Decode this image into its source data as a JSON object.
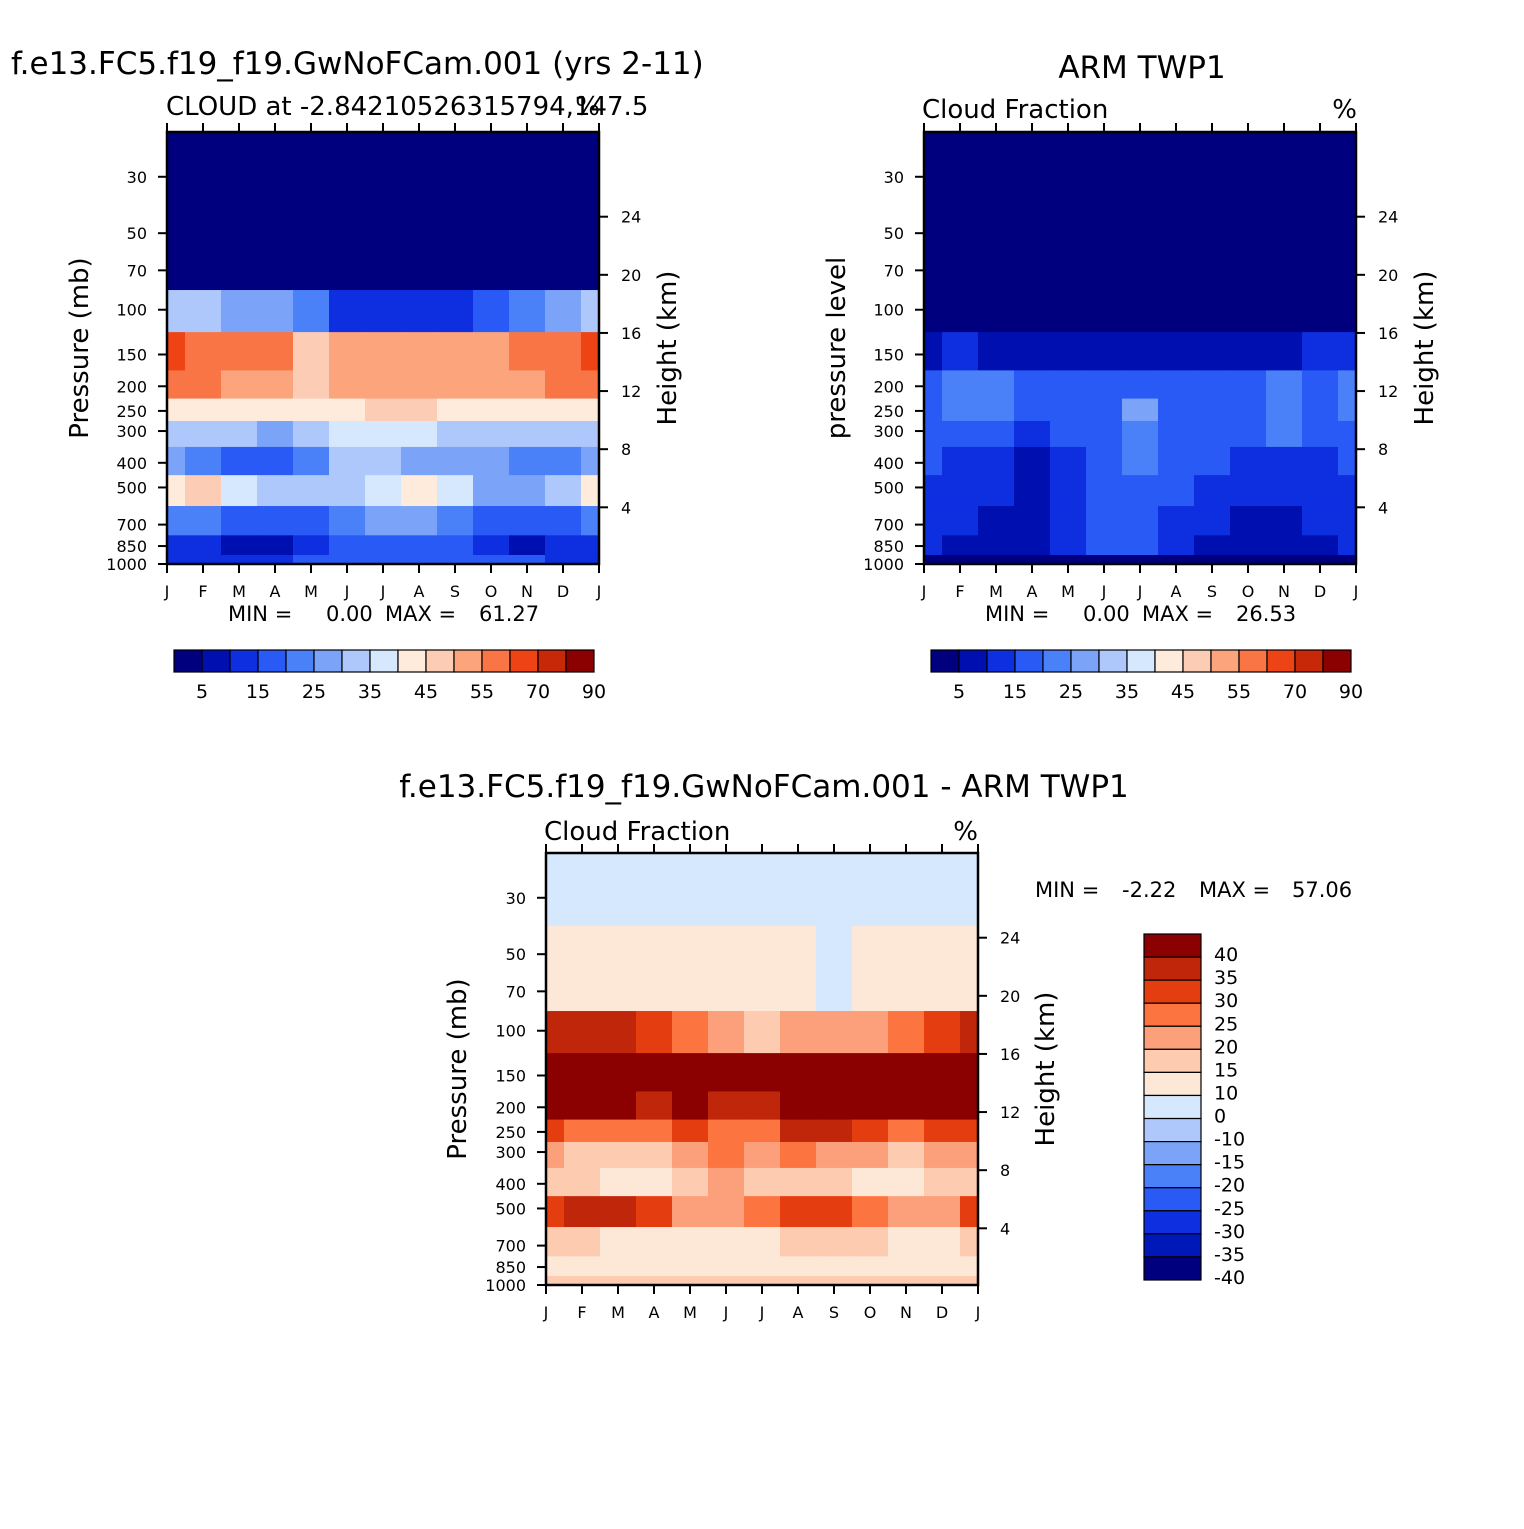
{
  "months": [
    "J",
    "F",
    "M",
    "A",
    "M",
    "J",
    "J",
    "A",
    "S",
    "O",
    "N",
    "D",
    "J"
  ],
  "pressure_ticks": [
    30,
    50,
    70,
    100,
    150,
    200,
    250,
    300,
    400,
    500,
    700,
    850,
    1000
  ],
  "height_ticks": [
    4,
    8,
    12,
    16,
    20,
    24
  ],
  "colors": {
    "abs_scale": [
      "#00007f",
      "#0010b0",
      "#0d2fe0",
      "#2a5af5",
      "#4a80f8",
      "#7ba3f8",
      "#aec8fb",
      "#d6e8fd",
      "#feebdc",
      "#fdccb5",
      "#fca47c",
      "#f97546",
      "#ee4315",
      "#c62808",
      "#8b0000"
    ],
    "diff_scale": [
      "#8b0000",
      "#c0260a",
      "#e43d10",
      "#fc7440",
      "#fba07a",
      "#fdcbb0",
      "#fde8d8",
      "#d6e8fd",
      "#aec8fb",
      "#7ba3f8",
      "#4a80f8",
      "#2a5af5",
      "#0d2fe0",
      "#0018b8",
      "#00007f"
    ]
  },
  "panels": {
    "model": {
      "title": "f.e13.FC5.f19_f19.GwNoFCam.001 (yrs 2-11)",
      "subtitle_left": "CLOUD at -2.84210526315794,147.5",
      "subtitle_right": "%",
      "ylabel": "Pressure (mb)",
      "ylabel_right": "Height (km)",
      "min_label": "MIN =",
      "min_value": "0.00",
      "max_label": "MAX =",
      "max_value": "61.27",
      "colorbar_labels": [
        "5",
        "15",
        "25",
        "35",
        "45",
        "55",
        "70",
        "90"
      ]
    },
    "obs": {
      "title": "ARM TWP1",
      "subtitle_left": "Cloud Fraction",
      "subtitle_right": "%",
      "ylabel": "pressure level",
      "ylabel_right": "Height (km)",
      "min_label": "MIN =",
      "min_value": "0.00",
      "max_label": "MAX =",
      "max_value": "26.53",
      "colorbar_labels": [
        "5",
        "15",
        "25",
        "35",
        "45",
        "55",
        "70",
        "90"
      ]
    },
    "diff": {
      "title": "f.e13.FC5.f19_f19.GwNoFCam.001 - ARM TWP1",
      "subtitle_left": "Cloud Fraction",
      "subtitle_right": "%",
      "ylabel": "Pressure (mb)",
      "ylabel_right": "Height (km)",
      "min_label": "MIN =",
      "min_value": "-2.22",
      "max_label": "MAX =",
      "max_value": "57.06",
      "colorbar_labels": [
        "40",
        "35",
        "30",
        "25",
        "20",
        "15",
        "10",
        "0",
        "-10",
        "-15",
        "-20",
        "-25",
        "-30",
        "-35",
        "-40"
      ]
    }
  },
  "chart_data": [
    {
      "type": "heatmap",
      "title": "f.e13.FC5.f19_f19.GwNoFCam.001 (yrs 2-11)",
      "subtitle": "CLOUD at -2.84210526315794,147.5",
      "units": "%",
      "xlabel": "",
      "ylabel": "Pressure (mb)",
      "ylabel_right": "Height (km)",
      "x": [
        "J",
        "F",
        "M",
        "A",
        "M",
        "J",
        "J",
        "A",
        "S",
        "O",
        "N",
        "D",
        "J"
      ],
      "y_pressure_mb": [
        30,
        50,
        70,
        100,
        150,
        200,
        250,
        300,
        400,
        500,
        700,
        850,
        1000
      ],
      "y_range_mb": [
        20,
        1000
      ],
      "contour_levels": [
        5,
        10,
        15,
        20,
        25,
        30,
        35,
        40,
        45,
        50,
        55,
        60,
        70,
        80,
        90
      ],
      "min": 0.0,
      "max": 61.27,
      "values": [
        [
          0,
          0,
          0,
          0,
          0,
          0,
          0,
          0,
          0,
          0,
          0,
          0,
          0
        ],
        [
          0,
          0,
          0,
          0,
          0,
          0,
          0,
          0,
          0,
          0,
          0,
          0,
          0
        ],
        [
          2,
          2,
          3,
          3,
          2,
          1,
          1,
          1,
          1,
          1,
          2,
          2,
          2
        ],
        [
          32,
          30,
          28,
          25,
          20,
          14,
          12,
          13,
          14,
          16,
          20,
          26,
          32
        ],
        [
          60,
          58,
          56,
          55,
          46,
          50,
          51,
          52,
          52,
          53,
          56,
          59,
          60
        ],
        [
          55,
          55,
          54,
          52,
          46,
          51,
          52,
          53,
          52,
          52,
          53,
          55,
          55
        ],
        [
          44,
          44,
          43,
          42,
          41,
          44,
          45,
          45,
          43,
          42,
          42,
          43,
          44
        ],
        [
          32,
          31,
          30,
          28,
          33,
          36,
          36,
          35,
          33,
          31,
          31,
          31,
          32
        ],
        [
          25,
          23,
          19,
          17,
          24,
          30,
          30,
          29,
          29,
          27,
          22,
          24,
          25
        ],
        [
          41,
          47,
          38,
          30,
          32,
          34,
          38,
          40,
          36,
          29,
          27,
          30,
          41
        ],
        [
          24,
          22,
          17,
          15,
          19,
          23,
          25,
          25,
          24,
          18,
          16,
          19,
          24
        ],
        [
          13,
          12,
          9,
          8,
          13,
          17,
          18,
          17,
          15,
          10,
          9,
          11,
          13
        ],
        [
          14,
          14,
          13,
          14,
          15,
          15,
          16,
          15,
          15,
          15,
          15,
          14,
          14
        ]
      ]
    },
    {
      "type": "heatmap",
      "title": "ARM TWP1",
      "subtitle": "Cloud Fraction",
      "units": "%",
      "xlabel": "",
      "ylabel": "pressure level",
      "ylabel_right": "Height (km)",
      "x": [
        "J",
        "F",
        "M",
        "A",
        "M",
        "J",
        "J",
        "A",
        "S",
        "O",
        "N",
        "D",
        "J"
      ],
      "y_pressure_mb": [
        30,
        50,
        70,
        100,
        150,
        200,
        250,
        300,
        400,
        500,
        700,
        850,
        1000
      ],
      "y_range_mb": [
        20,
        1000
      ],
      "contour_levels": [
        5,
        10,
        15,
        20,
        25,
        30,
        35,
        40,
        45,
        50,
        55,
        60,
        70,
        80,
        90
      ],
      "min": 0.0,
      "max": 26.53,
      "values": [
        [
          0,
          0,
          0,
          0,
          0,
          0,
          0,
          0,
          0,
          0,
          0,
          0,
          0
        ],
        [
          0,
          0,
          0,
          0,
          0,
          0,
          0,
          0,
          0,
          0,
          0,
          0,
          0
        ],
        [
          0,
          0,
          0,
          0,
          0,
          0,
          0,
          0,
          0,
          0,
          0,
          0,
          0
        ],
        [
          2,
          2,
          2,
          2,
          2,
          1,
          1,
          1,
          1,
          1,
          2,
          3,
          3
        ],
        [
          9,
          10,
          9,
          9,
          8,
          7,
          6,
          7,
          7,
          8,
          9,
          10,
          10
        ],
        [
          18,
          22,
          23,
          17,
          15,
          16,
          18,
          16,
          16,
          17,
          21,
          18,
          22
        ],
        [
          19,
          22,
          22,
          16,
          15,
          17,
          26,
          17,
          16,
          18,
          24,
          17,
          22
        ],
        [
          17,
          18,
          17,
          14,
          15,
          16,
          22,
          16,
          16,
          17,
          21,
          16,
          17
        ],
        [
          15,
          14,
          12,
          8,
          13,
          15,
          20,
          15,
          15,
          14,
          13,
          14,
          15
        ],
        [
          14,
          13,
          11,
          7,
          13,
          16,
          19,
          16,
          14,
          11,
          12,
          13,
          14
        ],
        [
          13,
          10,
          8,
          6,
          11,
          16,
          18,
          14,
          10,
          7,
          8,
          10,
          13
        ],
        [
          12,
          9,
          7,
          6,
          10,
          15,
          17,
          13,
          9,
          6,
          7,
          9,
          12
        ],
        [
          3,
          3,
          3,
          3,
          3,
          3,
          3,
          3,
          3,
          3,
          3,
          3,
          3
        ]
      ]
    },
    {
      "type": "heatmap",
      "title": "f.e13.FC5.f19_f19.GwNoFCam.001 - ARM TWP1",
      "subtitle": "Cloud Fraction",
      "units": "%",
      "xlabel": "",
      "ylabel": "Pressure (mb)",
      "ylabel_right": "Height (km)",
      "x": [
        "J",
        "F",
        "M",
        "A",
        "M",
        "J",
        "J",
        "A",
        "S",
        "O",
        "N",
        "D",
        "J"
      ],
      "y_pressure_mb": [
        30,
        50,
        70,
        100,
        150,
        200,
        250,
        300,
        400,
        500,
        700,
        850,
        1000
      ],
      "y_range_mb": [
        20,
        1000
      ],
      "contour_levels": [
        -40,
        -35,
        -30,
        -25,
        -20,
        -15,
        -10,
        0,
        10,
        15,
        20,
        25,
        30,
        35,
        40
      ],
      "min": -2.22,
      "max": 57.06,
      "values": [
        [
          -2,
          -2,
          -2,
          -2,
          -2,
          -2,
          -2,
          -2,
          -2,
          -2,
          -2,
          -2,
          -2
        ],
        [
          2,
          2,
          2,
          2,
          2,
          2,
          2,
          2,
          -1,
          2,
          2,
          2,
          2
        ],
        [
          3,
          3,
          3,
          3,
          3,
          2,
          2,
          2,
          -1,
          2,
          3,
          3,
          3
        ],
        [
          34,
          32,
          30,
          27,
          22,
          16,
          14,
          15,
          15,
          17,
          22,
          28,
          34
        ],
        [
          52,
          50,
          48,
          47,
          40,
          44,
          45,
          46,
          46,
          46,
          48,
          50,
          52
        ],
        [
          42,
          38,
          35,
          30,
          38,
          30,
          34,
          37,
          38,
          36,
          35,
          38,
          42
        ],
        [
          28,
          24,
          22,
          20,
          28,
          23,
          22,
          30,
          32,
          28,
          24,
          26,
          28
        ],
        [
          16,
          14,
          14,
          12,
          18,
          20,
          15,
          20,
          18,
          15,
          12,
          15,
          16
        ],
        [
          11,
          10,
          8,
          9,
          11,
          15,
          11,
          14,
          14,
          8,
          6,
          10,
          11
        ],
        [
          27,
          34,
          30,
          26,
          19,
          18,
          20,
          25,
          26,
          20,
          16,
          17,
          27
        ],
        [
          11,
          12,
          9,
          9,
          8,
          7,
          7,
          11,
          14,
          11,
          8,
          9,
          11
        ],
        [
          3,
          4,
          2,
          3,
          3,
          2,
          2,
          4,
          6,
          4,
          2,
          2,
          3
        ],
        [
          11,
          12,
          14,
          12,
          10,
          10,
          10,
          10,
          10,
          10,
          12,
          10,
          11
        ]
      ]
    }
  ]
}
